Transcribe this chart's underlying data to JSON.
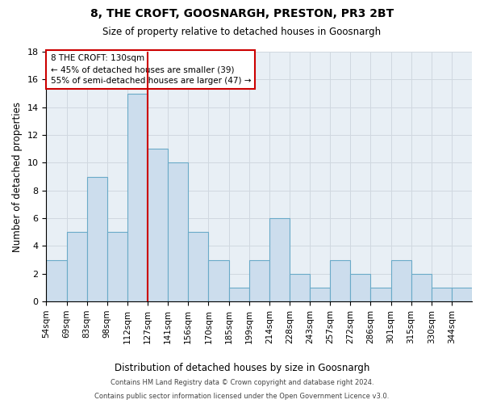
{
  "title": "8, THE CROFT, GOOSNARGH, PRESTON, PR3 2BT",
  "subtitle": "Size of property relative to detached houses in Goosnargh",
  "xlabel": "Distribution of detached houses by size in Goosnargh",
  "ylabel": "Number of detached properties",
  "bin_labels": [
    "54sqm",
    "69sqm",
    "83sqm",
    "98sqm",
    "112sqm",
    "127sqm",
    "141sqm",
    "156sqm",
    "170sqm",
    "185sqm",
    "199sqm",
    "214sqm",
    "228sqm",
    "243sqm",
    "257sqm",
    "272sqm",
    "286sqm",
    "301sqm",
    "315sqm",
    "330sqm",
    "344sqm"
  ],
  "bar_heights": [
    3,
    5,
    9,
    5,
    15,
    11,
    10,
    5,
    3,
    1,
    3,
    6,
    2,
    1,
    3,
    2,
    1,
    3,
    2,
    1,
    1
  ],
  "bar_color": "#ccdded",
  "bar_edgecolor": "#6aaac8",
  "grid_color": "#d0d8e0",
  "vline_color": "#cc0000",
  "annotation_text": "8 THE CROFT: 130sqm\n← 45% of detached houses are smaller (39)\n55% of semi-detached houses are larger (47) →",
  "annotation_box_edgecolor": "#cc0000",
  "annotation_box_facecolor": "#ffffff",
  "ylim": [
    0,
    18
  ],
  "yticks": [
    0,
    2,
    4,
    6,
    8,
    10,
    12,
    14,
    16,
    18
  ],
  "footer1": "Contains HM Land Registry data © Crown copyright and database right 2024.",
  "footer2": "Contains public sector information licensed under the Open Government Licence v3.0.",
  "vline_bar_index": 5,
  "n_bars": 21,
  "bg_color": "#e8eff5"
}
